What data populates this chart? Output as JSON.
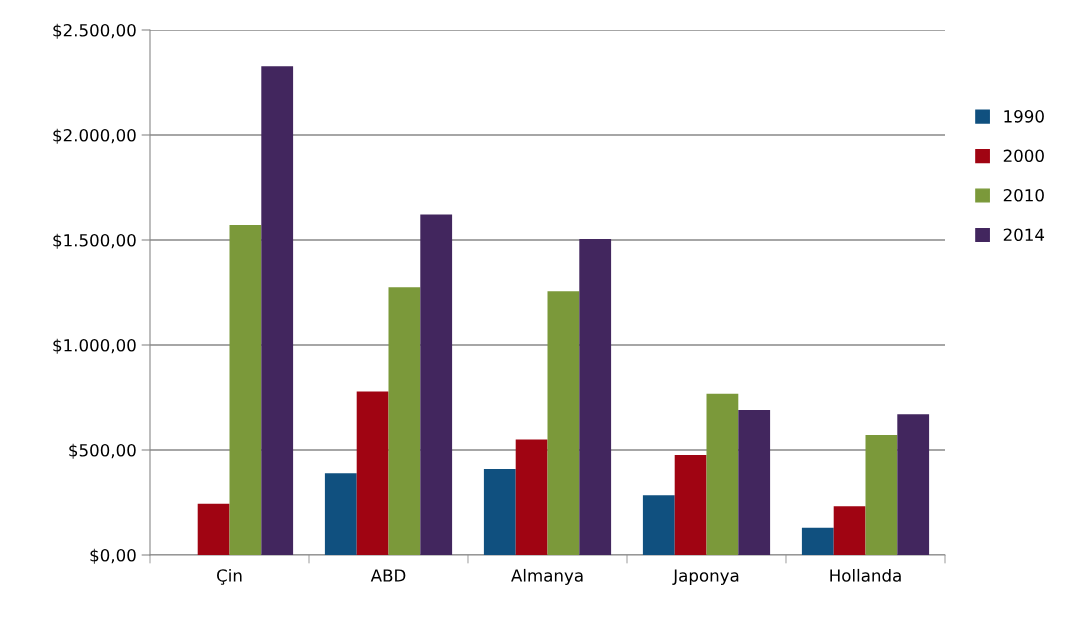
{
  "chart_data": {
    "type": "bar",
    "categories": [
      "Çin",
      "ABD",
      "Almanya",
      "Japonya",
      "Hollanda"
    ],
    "series": [
      {
        "name": "1990",
        "color": "#10507f",
        "values": [
          null,
          389,
          410,
          285,
          130
        ]
      },
      {
        "name": "2000",
        "color": "#a00412",
        "values": [
          244,
          779,
          550,
          476,
          232
        ]
      },
      {
        "name": "2010",
        "color": "#7b993a",
        "values": [
          1571,
          1275,
          1256,
          768,
          571
        ]
      },
      {
        "name": "2014",
        "color": "#42265e",
        "values": [
          2327,
          1621,
          1505,
          690,
          670
        ]
      }
    ],
    "ylim": [
      0,
      2500
    ],
    "yticks": [
      {
        "value": 0,
        "label": "$0,00"
      },
      {
        "value": 500,
        "label": "$500,00"
      },
      {
        "value": 1000,
        "label": "$1.000,00"
      },
      {
        "value": 1500,
        "label": "$1.500,00"
      },
      {
        "value": 2000,
        "label": "$2.000,00"
      },
      {
        "value": 2500,
        "label": "$2.500,00"
      }
    ],
    "grid": "y",
    "legend": "right"
  }
}
